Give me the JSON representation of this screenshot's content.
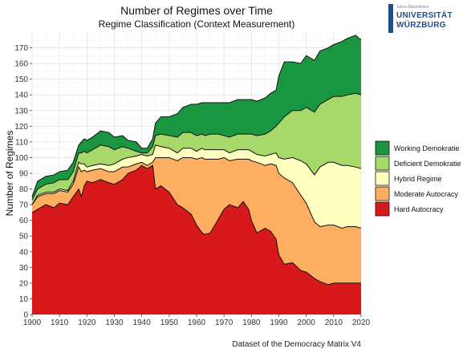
{
  "chart_data": {
    "type": "area",
    "stacked": true,
    "title": "Number of Regimes over Time",
    "subtitle": "Regime Classification (Context Measurement)",
    "ylabel": "Number of Regimes",
    "xlabel": "",
    "caption": "Dataset of the Democracy Matrix V4",
    "xlim": [
      1900,
      2020
    ],
    "ylim": [
      0,
      180
    ],
    "x_ticks": [
      1900,
      1910,
      1920,
      1930,
      1940,
      1950,
      1960,
      1970,
      1980,
      1990,
      2000,
      2010,
      2020
    ],
    "y_ticks": [
      0,
      10,
      20,
      30,
      40,
      50,
      60,
      70,
      80,
      90,
      100,
      110,
      120,
      130,
      140,
      150,
      160,
      170
    ],
    "grid": true,
    "legend_position": "right",
    "x": [
      1900,
      1902,
      1905,
      1908,
      1910,
      1913,
      1915,
      1917,
      1918,
      1919,
      1920,
      1922,
      1925,
      1928,
      1930,
      1933,
      1935,
      1938,
      1940,
      1942,
      1944,
      1945,
      1947,
      1950,
      1953,
      1955,
      1958,
      1960,
      1962,
      1963,
      1965,
      1968,
      1970,
      1972,
      1975,
      1977,
      1979,
      1980,
      1982,
      1985,
      1987,
      1989,
      1990,
      1992,
      1995,
      1998,
      2000,
      2003,
      2005,
      2008,
      2010,
      2013,
      2015,
      2018,
      2020
    ],
    "series": [
      {
        "name": "Hard Autocracy",
        "color": "#d7191c",
        "values": [
          65,
          67,
          70,
          68,
          71,
          70,
          75,
          80,
          75,
          82,
          85,
          84,
          86,
          84,
          83,
          86,
          90,
          92,
          95,
          93,
          95,
          80,
          82,
          78,
          70,
          68,
          64,
          57,
          52,
          51,
          52,
          61,
          67,
          70,
          68,
          72,
          67,
          60,
          52,
          55,
          53,
          48,
          38,
          32,
          33,
          28,
          27,
          23,
          21,
          19,
          20,
          20,
          20,
          20,
          20
        ]
      },
      {
        "name": "Moderate Autocracy",
        "color": "#fdae61",
        "values": [
          5,
          8,
          7,
          9,
          8,
          8,
          8,
          14,
          16,
          10,
          6,
          8,
          7,
          7,
          8,
          8,
          4,
          4,
          2,
          2,
          2,
          20,
          18,
          22,
          28,
          32,
          36,
          42,
          48,
          48,
          47,
          38,
          33,
          28,
          31,
          27,
          32,
          38,
          45,
          40,
          43,
          47,
          52,
          55,
          51,
          48,
          44,
          36,
          35,
          38,
          37,
          35,
          36,
          36,
          35
        ]
      },
      {
        "name": "Hybrid Regime",
        "color": "#ffffbf",
        "values": [
          0,
          1,
          1,
          1,
          1,
          1,
          2,
          3,
          5,
          4,
          3,
          3,
          3,
          4,
          5,
          5,
          6,
          5,
          5,
          6,
          5,
          8,
          7,
          6,
          5,
          6,
          6,
          5,
          6,
          6,
          6,
          6,
          5,
          5,
          6,
          6,
          6,
          6,
          5,
          6,
          6,
          8,
          10,
          12,
          16,
          22,
          25,
          30,
          38,
          40,
          40,
          40,
          39,
          38,
          38
        ]
      },
      {
        "name": "Deficient Demokratie",
        "color": "#a6d96a",
        "values": [
          3,
          4,
          5,
          6,
          6,
          7,
          6,
          6,
          7,
          8,
          9,
          10,
          12,
          12,
          9,
          8,
          6,
          3,
          1,
          2,
          5,
          6,
          8,
          8,
          10,
          10,
          10,
          10,
          9,
          9,
          10,
          10,
          9,
          10,
          10,
          10,
          10,
          11,
          12,
          14,
          15,
          17,
          22,
          27,
          30,
          32,
          36,
          40,
          40,
          40,
          42,
          44,
          45,
          47,
          47
        ]
      },
      {
        "name": "Working Demokratie",
        "color": "#1a9641",
        "values": [
          2,
          5,
          5,
          5,
          5,
          6,
          6,
          5,
          7,
          8,
          8,
          8,
          9,
          9,
          8,
          7,
          5,
          6,
          3,
          3,
          5,
          8,
          11,
          12,
          15,
          16,
          18,
          20,
          20,
          21,
          20,
          20,
          21,
          22,
          22,
          22,
          22,
          22,
          22,
          23,
          24,
          23,
          30,
          35,
          31,
          30,
          33,
          33,
          34,
          33,
          33,
          35,
          36,
          37,
          35
        ]
      }
    ]
  },
  "logo": {
    "small_text": "Julius-Maximilians-",
    "line1": "UNIVERSITÄT",
    "line2": "WÜRZBURG"
  }
}
